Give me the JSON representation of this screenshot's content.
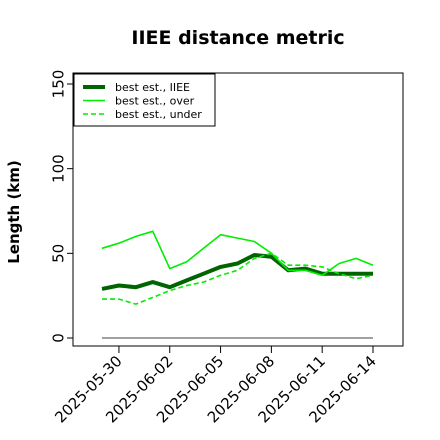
{
  "chart_data": {
    "type": "line",
    "title": "IIEE distance metric",
    "ylabel": "Length (km)",
    "xlabel": "",
    "ylim": [
      0,
      155
    ],
    "x_ticks": [
      "2025-05-30",
      "2025-06-02",
      "2025-06-05",
      "2025-06-08",
      "2025-06-11",
      "2025-06-14"
    ],
    "y_ticks": [
      "0",
      "50",
      "100",
      "150"
    ],
    "y_tick_values": [
      0,
      50,
      100,
      150
    ],
    "x": [
      "2025-05-29",
      "2025-05-30",
      "2025-05-31",
      "2025-06-01",
      "2025-06-02",
      "2025-06-03",
      "2025-06-04",
      "2025-06-05",
      "2025-06-06",
      "2025-06-07",
      "2025-06-08",
      "2025-06-09",
      "2025-06-10",
      "2025-06-11",
      "2025-06-12",
      "2025-06-13",
      "2025-06-14"
    ],
    "series": [
      {
        "name": "best est., IIEE",
        "color": "#006400",
        "dash": "solid",
        "width": 4,
        "values": [
          29,
          31,
          30,
          33,
          30,
          34,
          38,
          42,
          44,
          49,
          48,
          40,
          41,
          38,
          38,
          38,
          38
        ]
      },
      {
        "name": "best est., over",
        "color": "#00ee00",
        "dash": "solid",
        "width": 1.6,
        "values": [
          53,
          56,
          60,
          63,
          41,
          45,
          53,
          61,
          59,
          57,
          50,
          40,
          40,
          37,
          44,
          47,
          43
        ]
      },
      {
        "name": "best est., under",
        "color": "#00ee00",
        "dash": "dashed",
        "width": 1.6,
        "values": [
          23,
          23,
          20,
          24,
          28,
          31,
          33,
          37,
          40,
          47,
          50,
          43,
          43,
          42,
          38,
          35,
          37
        ]
      },
      {
        "name": "",
        "color": "#808080",
        "dash": "solid",
        "width": 1.4,
        "values": [
          0,
          0,
          0,
          0,
          0,
          0,
          0,
          0,
          0,
          0,
          0,
          0,
          0,
          0,
          0,
          0,
          0
        ]
      }
    ],
    "legend_position": "top-left",
    "grid": false
  }
}
